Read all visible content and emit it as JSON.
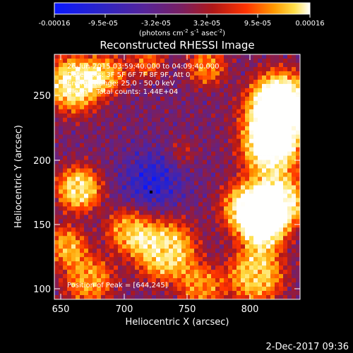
{
  "colorbar": {
    "ticks": [
      "-0.00016",
      "-9.5e-05",
      "-3.2e-05",
      "3.2e-05",
      "9.5e-05",
      "0.00016"
    ],
    "units_prefix": "(photons cm",
    "units_exp1": "-2",
    "units_mid": " s",
    "units_exp2": "-1",
    "units_mid2": " asec",
    "units_exp3": "-2",
    "units_suffix": ")",
    "colors": [
      "#0a18ff",
      "#2b24c8",
      "#55249a",
      "#7a1f60",
      "#b01818",
      "#ff3300",
      "#ff9a00",
      "#ffe04a",
      "#ffffff"
    ]
  },
  "plot": {
    "title": "Reconstructed RHESSI Image",
    "info_lines": [
      "26-Jun-2015 03:59:40.000 to 04:09:40.000",
      "Detectors: 3F 5F 6F 7F 8F 9F, Att 0",
      "Energy Range: 25.0 - 50.0 keV",
      "Clean    Total counts: 1.44E+04"
    ],
    "peak_label": "Position of Peak = [644,245]",
    "xlabel": "Heliocentric X (arcsec)",
    "ylabel": "Heliocentric Y (arcsec)",
    "xticks": [
      "650",
      "700",
      "750",
      "800"
    ],
    "yticks": [
      "100",
      "150",
      "200",
      "250"
    ]
  },
  "footer": {
    "timestamp": "2-Dec-2017 09:36"
  }
}
